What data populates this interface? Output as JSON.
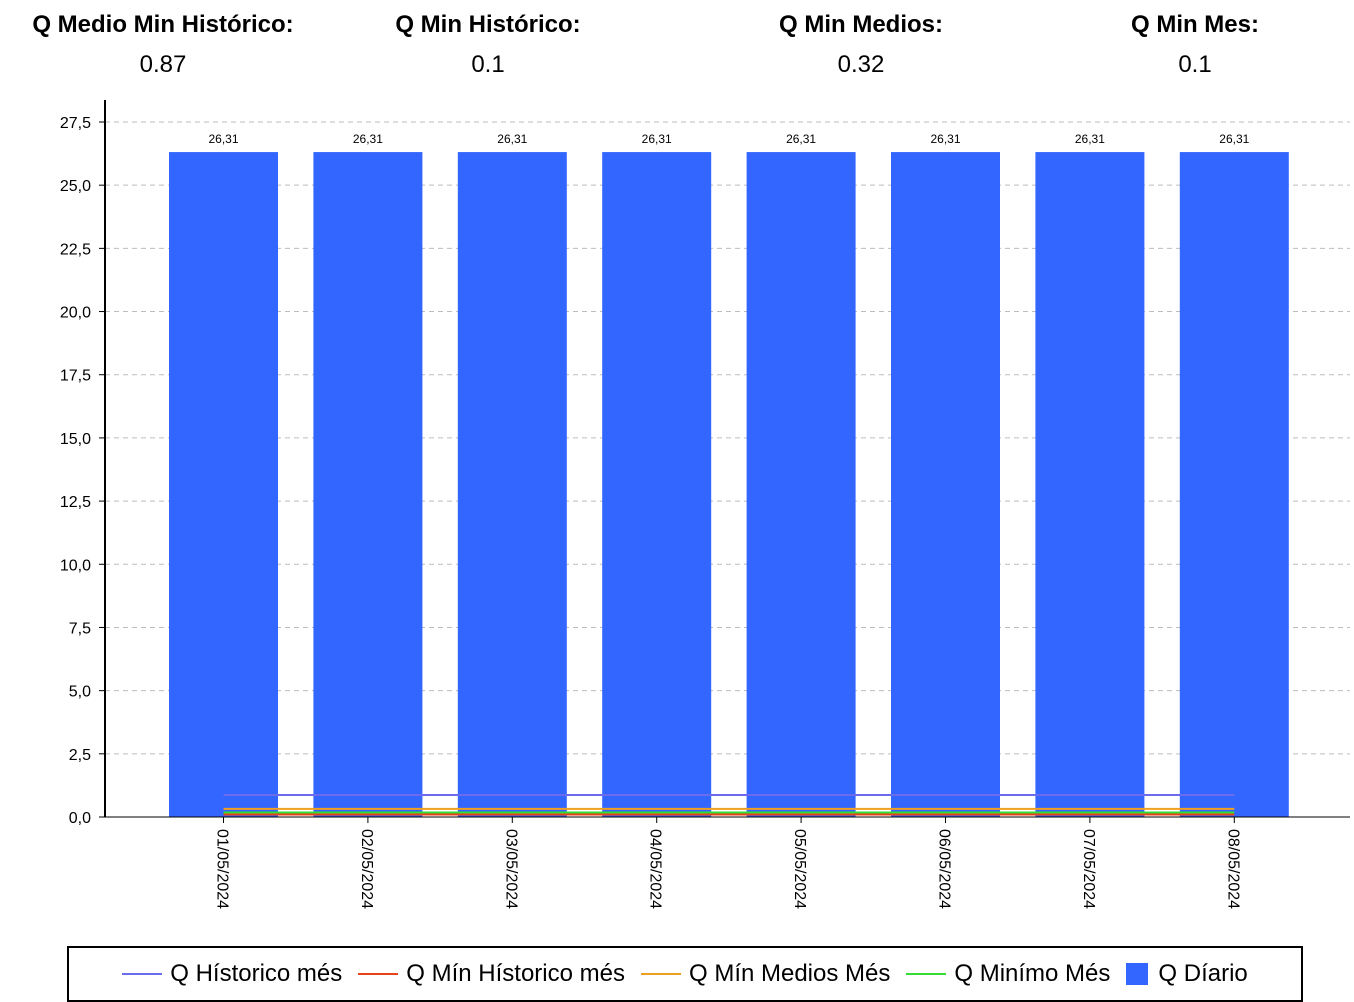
{
  "stats": [
    {
      "label": "Q Medio Min Histórico:",
      "value": "0.87"
    },
    {
      "label": "Q Min Histórico:",
      "value": "0.1"
    },
    {
      "label": "Q Min Medios:",
      "value": "0.32"
    },
    {
      "label": "Q Min Mes:",
      "value": "0.1"
    }
  ],
  "chart_data": {
    "type": "bar",
    "categories": [
      "01/05/2024",
      "02/05/2024",
      "03/05/2024",
      "04/05/2024",
      "05/05/2024",
      "06/05/2024",
      "07/05/2024",
      "08/05/2024"
    ],
    "bar_series": {
      "name": "Q Díario",
      "values": [
        26.31,
        26.31,
        26.31,
        26.31,
        26.31,
        26.31,
        26.31,
        26.31
      ],
      "color": "#3366ff"
    },
    "data_labels": [
      "26,31",
      "26,31",
      "26,31",
      "26,31",
      "26,31",
      "26,31",
      "26,31",
      "26,31"
    ],
    "line_series": [
      {
        "name": "Q Hístorico més",
        "value": 0.87,
        "color": "#6b6bf0"
      },
      {
        "name": "Q Mín Hístorico més",
        "value": 0.1,
        "color": "#e8421a"
      },
      {
        "name": "Q Mín Medios Més",
        "value": 0.32,
        "color": "#f0a020"
      },
      {
        "name": "Q Minímo Més",
        "value": 0.1,
        "color": "#33dd33"
      }
    ],
    "ylim": [
      0,
      27.5
    ],
    "y_ticks": [
      "0,0",
      "2,5",
      "5,0",
      "7,5",
      "10,0",
      "12,5",
      "15,0",
      "17,5",
      "20,0",
      "22,5",
      "25,0",
      "27,5"
    ],
    "grid": true,
    "legend_position": "bottom"
  }
}
